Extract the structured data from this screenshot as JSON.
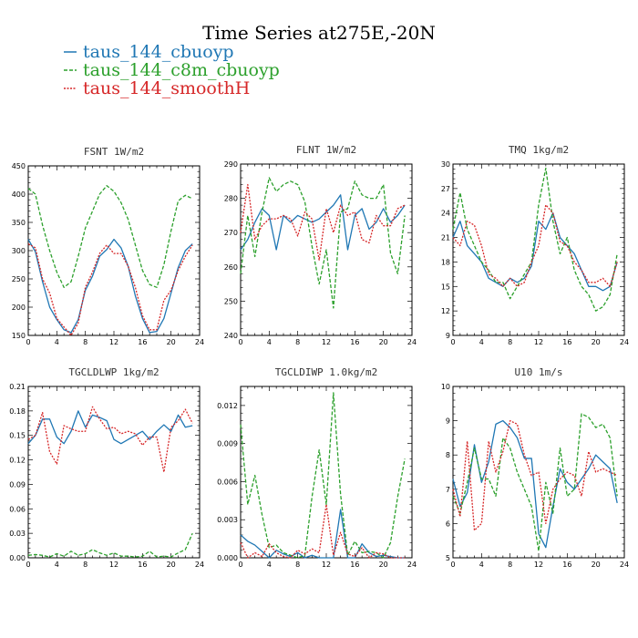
{
  "title": "Time Series at275E,-20N",
  "colors": {
    "cbuoyp": "#1f77b4",
    "c8m": "#2ca02c",
    "smooth": "#d62728"
  },
  "legend": [
    {
      "label": "taus_144_cbuoyp",
      "color": "#1f77b4"
    },
    {
      "label": "taus_144_c8m_cbuoyp",
      "color": "#2ca02c"
    },
    {
      "label": "taus_144_smoothH",
      "color": "#d62728"
    }
  ],
  "chart_data": [
    {
      "type": "line",
      "title": "FSNT  1W/m2",
      "xlim": [
        0,
        24
      ],
      "ylim": [
        150,
        450
      ],
      "xticks": [
        0,
        4,
        8,
        12,
        16,
        20,
        24
      ],
      "yticks": [
        150,
        200,
        250,
        300,
        350,
        400,
        450
      ],
      "x": [
        0,
        1,
        2,
        3,
        4,
        5,
        6,
        7,
        8,
        9,
        10,
        11,
        12,
        13,
        14,
        15,
        16,
        17,
        18,
        19,
        20,
        21,
        22,
        23
      ],
      "series": [
        {
          "name": "taus_144_cbuoyp",
          "values": [
            320,
            298,
            245,
            200,
            178,
            160,
            155,
            178,
            230,
            255,
            290,
            302,
            320,
            305,
            272,
            220,
            180,
            155,
            157,
            180,
            225,
            270,
            300,
            312
          ]
        },
        {
          "name": "taus_144_c8m_cbuoyp",
          "values": [
            410,
            400,
            345,
            300,
            262,
            235,
            245,
            290,
            340,
            370,
            400,
            415,
            405,
            385,
            355,
            310,
            265,
            240,
            235,
            275,
            335,
            388,
            398,
            392
          ]
        },
        {
          "name": "taus_144_smoothH",
          "values": [
            312,
            305,
            250,
            225,
            180,
            165,
            150,
            172,
            235,
            262,
            295,
            310,
            295,
            295,
            272,
            235,
            185,
            160,
            160,
            212,
            230,
            265,
            290,
            310
          ]
        }
      ]
    },
    {
      "type": "line",
      "title": "FLNT  1W/m2",
      "xlim": [
        0,
        24
      ],
      "ylim": [
        240,
        290
      ],
      "xticks": [
        0,
        4,
        8,
        12,
        16,
        20,
        24
      ],
      "yticks": [
        240,
        250,
        260,
        270,
        280,
        290
      ],
      "x": [
        0,
        1,
        2,
        3,
        4,
        5,
        6,
        7,
        8,
        9,
        10,
        11,
        12,
        13,
        14,
        15,
        16,
        17,
        18,
        19,
        20,
        21,
        22,
        23
      ],
      "series": [
        {
          "name": "taus_144_cbuoyp",
          "values": [
            265,
            268,
            273,
            277,
            275,
            265,
            275,
            273,
            275,
            274,
            273,
            274,
            276,
            278,
            281,
            265,
            275,
            277,
            271,
            273,
            277,
            273,
            275,
            278
          ]
        },
        {
          "name": "taus_144_c8m_cbuoyp",
          "values": [
            258,
            275,
            263,
            276,
            286,
            282,
            284,
            285,
            284,
            279,
            266,
            255,
            265,
            248,
            276,
            277,
            285,
            281,
            280,
            280,
            284,
            264,
            258,
            275
          ]
        },
        {
          "name": "taus_144_smoothH",
          "values": [
            270,
            284,
            268,
            272,
            274,
            274,
            275,
            274,
            269,
            276,
            274,
            262,
            277,
            270,
            278,
            275,
            276,
            268,
            267,
            275,
            272,
            272,
            277,
            278
          ]
        }
      ]
    },
    {
      "type": "line",
      "title": "TMQ  1kg/m2",
      "xlim": [
        0,
        24
      ],
      "ylim": [
        9,
        30
      ],
      "xticks": [
        0,
        4,
        8,
        12,
        16,
        20,
        24
      ],
      "yticks": [
        9,
        12,
        15,
        18,
        21,
        24,
        27,
        30
      ],
      "x": [
        0,
        1,
        2,
        3,
        4,
        5,
        6,
        7,
        8,
        9,
        10,
        11,
        12,
        13,
        14,
        15,
        16,
        17,
        18,
        19,
        20,
        21,
        22,
        23
      ],
      "series": [
        {
          "name": "taus_144_cbuoyp",
          "values": [
            21,
            23,
            20,
            19,
            18,
            16,
            15.5,
            15,
            16,
            15.5,
            16,
            17.5,
            23,
            22,
            24,
            21,
            20,
            19,
            17,
            15,
            15,
            14.5,
            15,
            18
          ]
        },
        {
          "name": "taus_144_c8m_cbuoyp",
          "values": [
            22,
            26.5,
            22,
            20,
            18,
            17,
            15.5,
            15.5,
            13.5,
            15,
            16.5,
            18,
            25,
            29.5,
            23,
            19,
            21,
            17,
            15,
            14,
            12,
            12.5,
            14,
            19
          ]
        },
        {
          "name": "taus_144_smoothH",
          "values": [
            21,
            20,
            23,
            22.5,
            20,
            16.5,
            16,
            15,
            16,
            15,
            15.5,
            18,
            20,
            25,
            24,
            20.5,
            20,
            18,
            17,
            15.5,
            15.5,
            16,
            15,
            18
          ]
        }
      ]
    },
    {
      "type": "line",
      "title": "TGCLDLWP  1kg/m2",
      "xlim": [
        0,
        24
      ],
      "ylim": [
        0,
        0.21
      ],
      "xticks": [
        0,
        4,
        8,
        12,
        16,
        20,
        24
      ],
      "yticks": [
        0,
        0.03,
        0.06,
        0.09,
        0.12,
        0.15,
        0.18,
        0.21
      ],
      "ytick_labels": [
        "0.00",
        "0.03",
        "0.06",
        "0.09",
        "0.12",
        "0.15",
        "0.18",
        "0.21"
      ],
      "x": [
        0,
        1,
        2,
        3,
        4,
        5,
        6,
        7,
        8,
        9,
        10,
        11,
        12,
        13,
        14,
        15,
        16,
        17,
        18,
        19,
        20,
        21,
        22,
        23
      ],
      "series": [
        {
          "name": "taus_144_cbuoyp",
          "values": [
            0.14,
            0.15,
            0.17,
            0.17,
            0.148,
            0.14,
            0.155,
            0.18,
            0.16,
            0.175,
            0.172,
            0.168,
            0.145,
            0.14,
            0.145,
            0.15,
            0.155,
            0.145,
            0.155,
            0.163,
            0.155,
            0.175,
            0.16,
            0.162
          ]
        },
        {
          "name": "taus_144_c8m_cbuoyp",
          "values": [
            0.003,
            0.004,
            0.003,
            0.001,
            0.005,
            0.002,
            0.008,
            0.003,
            0.005,
            0.01,
            0.006,
            0.003,
            0.006,
            0.002,
            0.002,
            0.001,
            0.002,
            0.008,
            0.001,
            0.002,
            0.001,
            0.006,
            0.01,
            0.03
          ]
        },
        {
          "name": "taus_144_smoothH",
          "values": [
            0.145,
            0.15,
            0.178,
            0.13,
            0.115,
            0.162,
            0.158,
            0.155,
            0.155,
            0.185,
            0.17,
            0.158,
            0.16,
            0.152,
            0.155,
            0.152,
            0.138,
            0.148,
            0.148,
            0.105,
            0.16,
            0.168,
            0.182,
            0.165
          ]
        }
      ]
    },
    {
      "type": "line",
      "title": "TGCLDIWP  1.0kg/m2",
      "xlim": [
        0,
        24
      ],
      "ylim": [
        0,
        0.0135
      ],
      "xticks": [
        0,
        4,
        8,
        12,
        16,
        20,
        24
      ],
      "yticks": [
        0,
        0.003,
        0.006,
        0.009,
        0.012
      ],
      "ytick_labels": [
        "0.000",
        "0.003",
        "0.006",
        "0.009",
        "0.012"
      ],
      "x": [
        0,
        1,
        2,
        3,
        4,
        5,
        6,
        7,
        8,
        9,
        10,
        11,
        12,
        13,
        14,
        15,
        16,
        17,
        18,
        19,
        20,
        21,
        22,
        23
      ],
      "series": [
        {
          "name": "taus_144_cbuoyp",
          "values": [
            0.0018,
            0.0013,
            0.001,
            0.0005,
            0.0,
            0.0006,
            0.0003,
            0.0001,
            0.0004,
            0.0,
            0.0002,
            0.0,
            0.0,
            0.0,
            0.0038,
            0.0,
            0.0,
            0.0011,
            0.0004,
            0.0001,
            0.0002,
            0.0001,
            0.0,
            0.0
          ]
        },
        {
          "name": "taus_144_c8m_cbuoyp",
          "values": [
            0.0105,
            0.0042,
            0.0065,
            0.0034,
            0.0008,
            0.001,
            0.0004,
            0.0002,
            0.0,
            0.0002,
            0.0048,
            0.0085,
            0.0042,
            0.013,
            0.005,
            0.0002,
            0.0013,
            0.0004,
            0.0005,
            0.0004,
            0.0,
            0.0012,
            0.0048,
            0.0078
          ]
        },
        {
          "name": "taus_144_smoothH",
          "values": [
            0.0012,
            0.0,
            0.0004,
            0.0001,
            0.0011,
            0.0004,
            0.0001,
            0.0,
            0.0006,
            0.0003,
            0.0007,
            0.0004,
            0.0042,
            0.0002,
            0.002,
            0.0003,
            0.0001,
            0.0008,
            0.0,
            0.0004,
            0.0003,
            0.0,
            0.0,
            0.0
          ]
        }
      ]
    },
    {
      "type": "line",
      "title": "U10  1m/s",
      "xlim": [
        0,
        24
      ],
      "ylim": [
        5,
        10
      ],
      "xticks": [
        0,
        4,
        8,
        12,
        16,
        20,
        24
      ],
      "yticks": [
        5,
        6,
        7,
        8,
        9,
        10
      ],
      "x": [
        0,
        1,
        2,
        3,
        4,
        5,
        6,
        7,
        8,
        9,
        10,
        11,
        12,
        13,
        14,
        15,
        16,
        17,
        18,
        19,
        20,
        21,
        22,
        23
      ],
      "series": [
        {
          "name": "taus_144_cbuoyp",
          "values": [
            7.3,
            6.5,
            6.9,
            8.3,
            7.2,
            7.8,
            8.9,
            9.0,
            8.8,
            8.5,
            7.9,
            7.9,
            5.7,
            5.3,
            6.5,
            7.6,
            7.2,
            7.0,
            7.3,
            7.6,
            8.0,
            7.8,
            7.6,
            6.6
          ]
        },
        {
          "name": "taus_144_c8m_cbuoyp",
          "values": [
            6.8,
            6.3,
            7.2,
            8.2,
            7.3,
            7.3,
            6.8,
            8.5,
            8.2,
            7.5,
            7.0,
            6.5,
            5.2,
            7.2,
            6.3,
            8.2,
            6.8,
            7.0,
            9.2,
            9.1,
            8.8,
            8.9,
            8.5,
            6.8
          ]
        },
        {
          "name": "taus_144_smoothH",
          "values": [
            7.0,
            6.2,
            8.4,
            5.8,
            6.0,
            8.4,
            7.5,
            8.1,
            9.0,
            8.9,
            8.0,
            7.4,
            7.5,
            6.0,
            7.0,
            7.3,
            7.5,
            7.4,
            6.8,
            8.1,
            7.5,
            7.6,
            7.5,
            7.4
          ]
        }
      ]
    }
  ]
}
